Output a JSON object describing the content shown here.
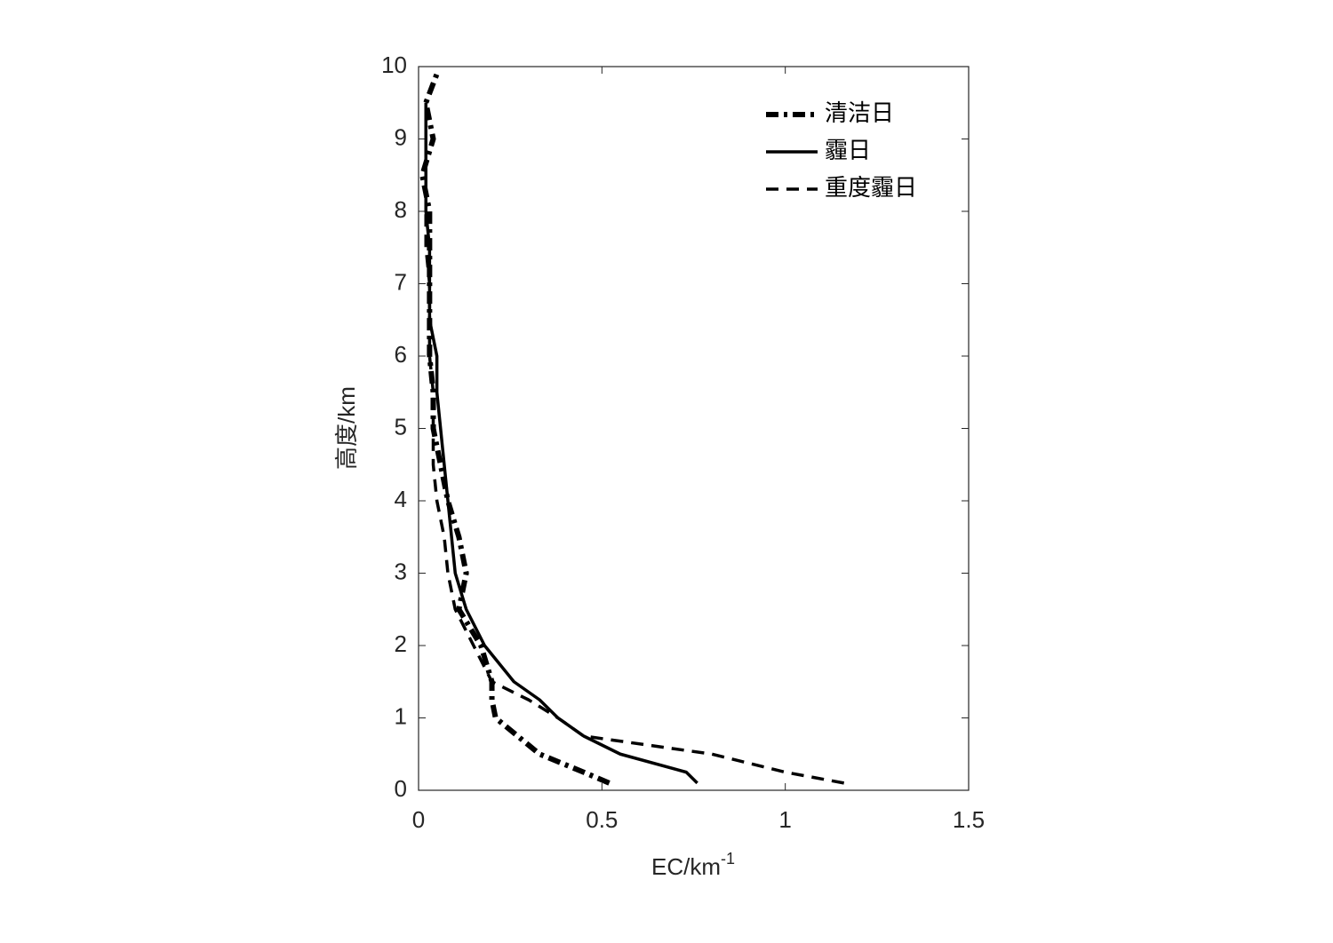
{
  "chart_data": {
    "type": "line",
    "xlabel": "EC/km",
    "xlabel_sup": "-1",
    "ylabel": "高度/km",
    "y": [
      0.1,
      0.25,
      0.5,
      0.75,
      1,
      1.25,
      1.5,
      2,
      2.5,
      3,
      3.5,
      4,
      4.5,
      5,
      5.5,
      6,
      6.5,
      7,
      7.5,
      8,
      8.5,
      9,
      9.5,
      9.9
    ],
    "series": [
      {
        "name": "清洁日",
        "color": "#000000",
        "dash": "dash-dot",
        "width": 6,
        "values": [
          0.52,
          0.45,
          0.33,
          0.27,
          0.21,
          0.2,
          0.2,
          0.17,
          0.11,
          0.13,
          0.11,
          0.08,
          0.06,
          0.04,
          0.04,
          0.03,
          0.03,
          0.03,
          0.03,
          0.03,
          0.01,
          0.04,
          0.02,
          0.05
        ]
      },
      {
        "name": "霾日",
        "color": "#000000",
        "dash": "solid",
        "width": 3.5,
        "values": [
          0.76,
          0.73,
          0.55,
          0.45,
          0.38,
          0.33,
          0.26,
          0.18,
          0.13,
          0.1,
          0.09,
          0.08,
          0.07,
          0.06,
          0.05,
          0.05,
          0.03,
          0.03,
          0.03,
          0.02,
          0.02,
          0.02,
          0.02,
          null
        ]
      },
      {
        "name": "重度霾日",
        "color": "#000000",
        "dash": "dashed",
        "width": 3.5,
        "values": [
          1.16,
          1.0,
          0.8,
          0.45,
          0.38,
          0.3,
          0.2,
          0.15,
          0.1,
          0.08,
          0.07,
          0.05,
          0.04,
          0.04,
          0.04,
          0.03,
          0.03,
          0.03,
          0.02,
          0.02,
          0.02,
          0.02,
          0.02,
          null
        ]
      }
    ],
    "xlim": [
      0,
      1.5
    ],
    "xticks": [
      0,
      0.5,
      1,
      1.5
    ],
    "ylim": [
      0,
      10
    ],
    "yticks": [
      0,
      1,
      2,
      3,
      4,
      5,
      6,
      7,
      8,
      9,
      10
    ],
    "legend": "upper-right"
  }
}
